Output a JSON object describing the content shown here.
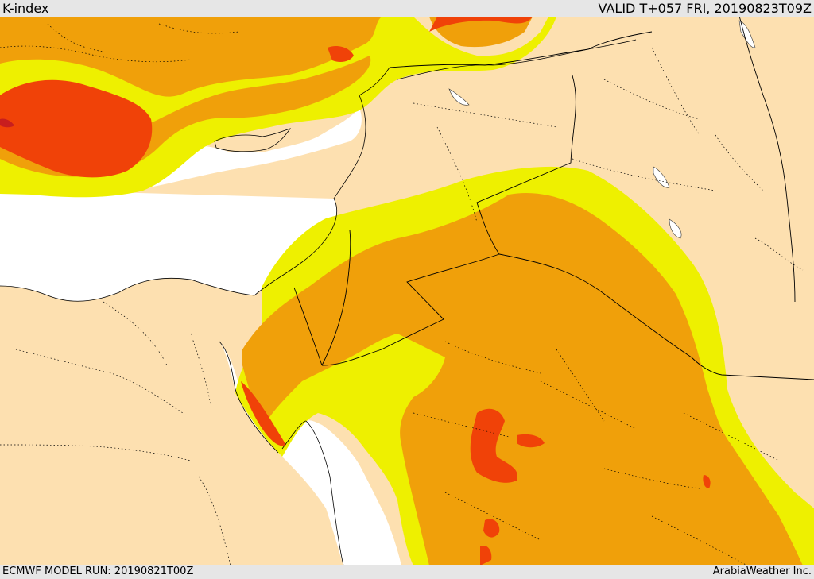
{
  "header": {
    "title": "K-index",
    "valid": "VALID T+057 FRI, 20190823T09Z"
  },
  "footer": {
    "model_run": "ECMWF MODEL RUN: 20190821T00Z",
    "credit": "ArabiaWeather Inc."
  },
  "colors": {
    "land": "#fde0b0",
    "water": "#ffffff",
    "band_yellow": "#eef000",
    "band_orange": "#f0a00a",
    "band_red": "#f04208",
    "band_darkred": "#c81e1e",
    "bar_bg": "#e6e6e6"
  }
}
